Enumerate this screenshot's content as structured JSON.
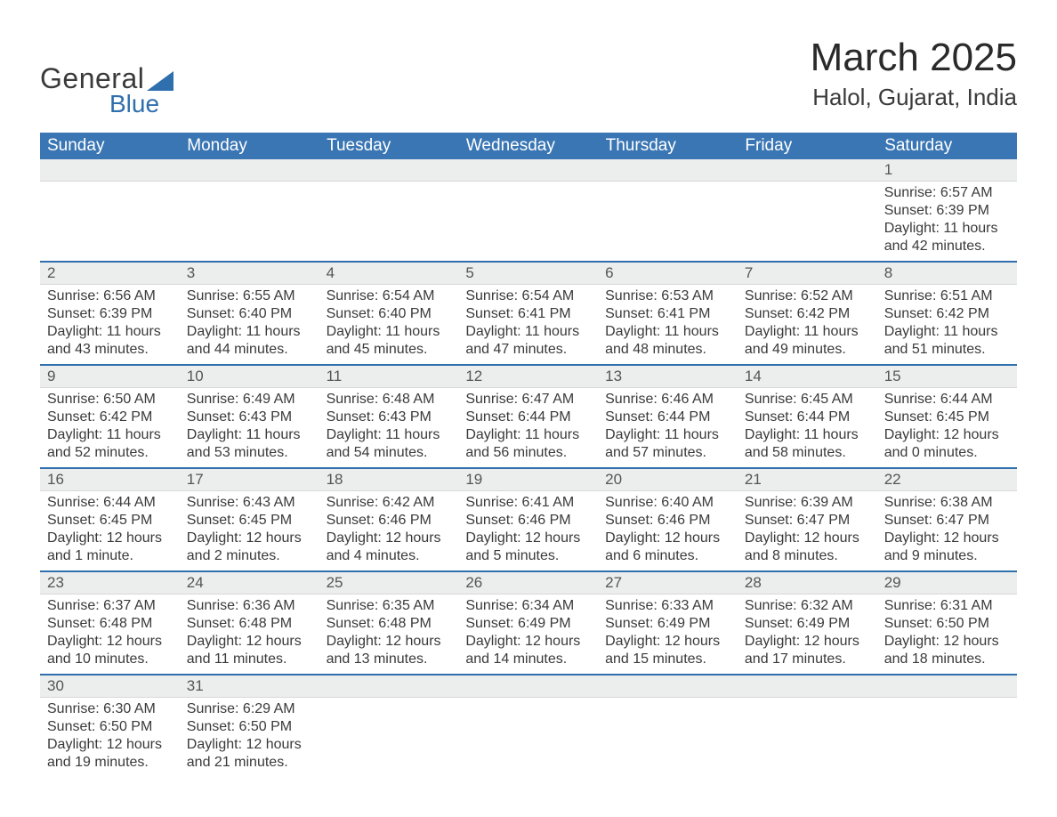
{
  "brand": {
    "part1": "General",
    "part2": "Blue",
    "flag_color": "#2f6fad"
  },
  "title": "March 2025",
  "location": "Halol, Gujarat, India",
  "colors": {
    "header_bg": "#3a76b4",
    "header_text": "#ffffff",
    "daynum_bg": "#eceded",
    "row_border": "#2f6fad",
    "body_text": "#3a3a3a",
    "page_bg": "#ffffff"
  },
  "typography": {
    "title_fontsize": 44,
    "location_fontsize": 26,
    "header_fontsize": 19,
    "daynum_fontsize": 17,
    "detail_fontsize": 16
  },
  "calendar": {
    "type": "table",
    "columns": [
      "Sunday",
      "Monday",
      "Tuesday",
      "Wednesday",
      "Thursday",
      "Friday",
      "Saturday"
    ],
    "weeks": [
      [
        null,
        null,
        null,
        null,
        null,
        null,
        {
          "n": "1",
          "sunrise": "Sunrise: 6:57 AM",
          "sunset": "Sunset: 6:39 PM",
          "d1": "Daylight: 11 hours",
          "d2": "and 42 minutes."
        }
      ],
      [
        {
          "n": "2",
          "sunrise": "Sunrise: 6:56 AM",
          "sunset": "Sunset: 6:39 PM",
          "d1": "Daylight: 11 hours",
          "d2": "and 43 minutes."
        },
        {
          "n": "3",
          "sunrise": "Sunrise: 6:55 AM",
          "sunset": "Sunset: 6:40 PM",
          "d1": "Daylight: 11 hours",
          "d2": "and 44 minutes."
        },
        {
          "n": "4",
          "sunrise": "Sunrise: 6:54 AM",
          "sunset": "Sunset: 6:40 PM",
          "d1": "Daylight: 11 hours",
          "d2": "and 45 minutes."
        },
        {
          "n": "5",
          "sunrise": "Sunrise: 6:54 AM",
          "sunset": "Sunset: 6:41 PM",
          "d1": "Daylight: 11 hours",
          "d2": "and 47 minutes."
        },
        {
          "n": "6",
          "sunrise": "Sunrise: 6:53 AM",
          "sunset": "Sunset: 6:41 PM",
          "d1": "Daylight: 11 hours",
          "d2": "and 48 minutes."
        },
        {
          "n": "7",
          "sunrise": "Sunrise: 6:52 AM",
          "sunset": "Sunset: 6:42 PM",
          "d1": "Daylight: 11 hours",
          "d2": "and 49 minutes."
        },
        {
          "n": "8",
          "sunrise": "Sunrise: 6:51 AM",
          "sunset": "Sunset: 6:42 PM",
          "d1": "Daylight: 11 hours",
          "d2": "and 51 minutes."
        }
      ],
      [
        {
          "n": "9",
          "sunrise": "Sunrise: 6:50 AM",
          "sunset": "Sunset: 6:42 PM",
          "d1": "Daylight: 11 hours",
          "d2": "and 52 minutes."
        },
        {
          "n": "10",
          "sunrise": "Sunrise: 6:49 AM",
          "sunset": "Sunset: 6:43 PM",
          "d1": "Daylight: 11 hours",
          "d2": "and 53 minutes."
        },
        {
          "n": "11",
          "sunrise": "Sunrise: 6:48 AM",
          "sunset": "Sunset: 6:43 PM",
          "d1": "Daylight: 11 hours",
          "d2": "and 54 minutes."
        },
        {
          "n": "12",
          "sunrise": "Sunrise: 6:47 AM",
          "sunset": "Sunset: 6:44 PM",
          "d1": "Daylight: 11 hours",
          "d2": "and 56 minutes."
        },
        {
          "n": "13",
          "sunrise": "Sunrise: 6:46 AM",
          "sunset": "Sunset: 6:44 PM",
          "d1": "Daylight: 11 hours",
          "d2": "and 57 minutes."
        },
        {
          "n": "14",
          "sunrise": "Sunrise: 6:45 AM",
          "sunset": "Sunset: 6:44 PM",
          "d1": "Daylight: 11 hours",
          "d2": "and 58 minutes."
        },
        {
          "n": "15",
          "sunrise": "Sunrise: 6:44 AM",
          "sunset": "Sunset: 6:45 PM",
          "d1": "Daylight: 12 hours",
          "d2": "and 0 minutes."
        }
      ],
      [
        {
          "n": "16",
          "sunrise": "Sunrise: 6:44 AM",
          "sunset": "Sunset: 6:45 PM",
          "d1": "Daylight: 12 hours",
          "d2": "and 1 minute."
        },
        {
          "n": "17",
          "sunrise": "Sunrise: 6:43 AM",
          "sunset": "Sunset: 6:45 PM",
          "d1": "Daylight: 12 hours",
          "d2": "and 2 minutes."
        },
        {
          "n": "18",
          "sunrise": "Sunrise: 6:42 AM",
          "sunset": "Sunset: 6:46 PM",
          "d1": "Daylight: 12 hours",
          "d2": "and 4 minutes."
        },
        {
          "n": "19",
          "sunrise": "Sunrise: 6:41 AM",
          "sunset": "Sunset: 6:46 PM",
          "d1": "Daylight: 12 hours",
          "d2": "and 5 minutes."
        },
        {
          "n": "20",
          "sunrise": "Sunrise: 6:40 AM",
          "sunset": "Sunset: 6:46 PM",
          "d1": "Daylight: 12 hours",
          "d2": "and 6 minutes."
        },
        {
          "n": "21",
          "sunrise": "Sunrise: 6:39 AM",
          "sunset": "Sunset: 6:47 PM",
          "d1": "Daylight: 12 hours",
          "d2": "and 8 minutes."
        },
        {
          "n": "22",
          "sunrise": "Sunrise: 6:38 AM",
          "sunset": "Sunset: 6:47 PM",
          "d1": "Daylight: 12 hours",
          "d2": "and 9 minutes."
        }
      ],
      [
        {
          "n": "23",
          "sunrise": "Sunrise: 6:37 AM",
          "sunset": "Sunset: 6:48 PM",
          "d1": "Daylight: 12 hours",
          "d2": "and 10 minutes."
        },
        {
          "n": "24",
          "sunrise": "Sunrise: 6:36 AM",
          "sunset": "Sunset: 6:48 PM",
          "d1": "Daylight: 12 hours",
          "d2": "and 11 minutes."
        },
        {
          "n": "25",
          "sunrise": "Sunrise: 6:35 AM",
          "sunset": "Sunset: 6:48 PM",
          "d1": "Daylight: 12 hours",
          "d2": "and 13 minutes."
        },
        {
          "n": "26",
          "sunrise": "Sunrise: 6:34 AM",
          "sunset": "Sunset: 6:49 PM",
          "d1": "Daylight: 12 hours",
          "d2": "and 14 minutes."
        },
        {
          "n": "27",
          "sunrise": "Sunrise: 6:33 AM",
          "sunset": "Sunset: 6:49 PM",
          "d1": "Daylight: 12 hours",
          "d2": "and 15 minutes."
        },
        {
          "n": "28",
          "sunrise": "Sunrise: 6:32 AM",
          "sunset": "Sunset: 6:49 PM",
          "d1": "Daylight: 12 hours",
          "d2": "and 17 minutes."
        },
        {
          "n": "29",
          "sunrise": "Sunrise: 6:31 AM",
          "sunset": "Sunset: 6:50 PM",
          "d1": "Daylight: 12 hours",
          "d2": "and 18 minutes."
        }
      ],
      [
        {
          "n": "30",
          "sunrise": "Sunrise: 6:30 AM",
          "sunset": "Sunset: 6:50 PM",
          "d1": "Daylight: 12 hours",
          "d2": "and 19 minutes."
        },
        {
          "n": "31",
          "sunrise": "Sunrise: 6:29 AM",
          "sunset": "Sunset: 6:50 PM",
          "d1": "Daylight: 12 hours",
          "d2": "and 21 minutes."
        },
        null,
        null,
        null,
        null,
        null
      ]
    ]
  }
}
